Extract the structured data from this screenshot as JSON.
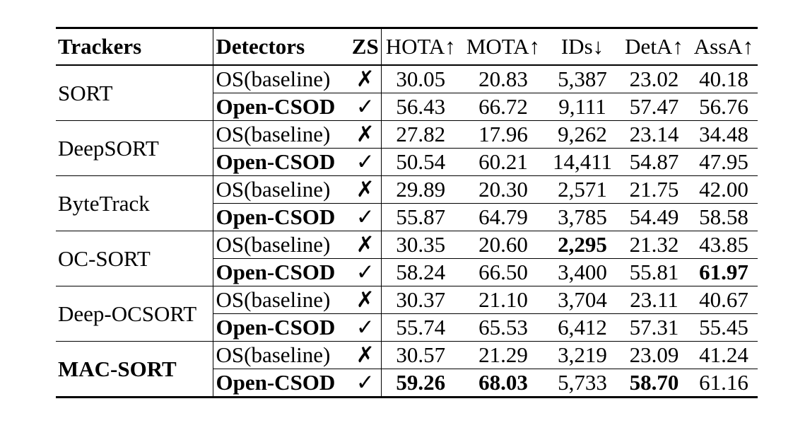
{
  "header": {
    "trackers": "Trackers",
    "detectors": "Detectors",
    "zs": "ZS",
    "hota": "HOTA↑",
    "mota": "MOTA↑",
    "ids": "IDs↓",
    "deta": "DetA↑",
    "assa": "AssA↑"
  },
  "groups": [
    {
      "tracker": "SORT",
      "tracker_bold": false,
      "rows": [
        {
          "detector": "OS(baseline)",
          "zs": "✗",
          "vals": [
            "30.05",
            "20.83",
            "5,387",
            "23.02",
            "40.18"
          ],
          "bold": [
            false,
            false,
            false,
            false,
            false
          ]
        },
        {
          "detector": "Open-CSOD",
          "zs": "✓",
          "vals": [
            "56.43",
            "66.72",
            "9,111",
            "57.47",
            "56.76"
          ],
          "bold": [
            false,
            false,
            false,
            false,
            false
          ]
        }
      ]
    },
    {
      "tracker": "DeepSORT",
      "tracker_bold": false,
      "rows": [
        {
          "detector": "OS(baseline)",
          "zs": "✗",
          "vals": [
            "27.82",
            "17.96",
            "9,262",
            "23.14",
            "34.48"
          ],
          "bold": [
            false,
            false,
            false,
            false,
            false
          ]
        },
        {
          "detector": "Open-CSOD",
          "zs": "✓",
          "vals": [
            "50.54",
            "60.21",
            "14,411",
            "54.87",
            "47.95"
          ],
          "bold": [
            false,
            false,
            false,
            false,
            false
          ]
        }
      ]
    },
    {
      "tracker": "ByteTrack",
      "tracker_bold": false,
      "rows": [
        {
          "detector": "OS(baseline)",
          "zs": "✗",
          "vals": [
            "29.89",
            "20.30",
            "2,571",
            "21.75",
            "42.00"
          ],
          "bold": [
            false,
            false,
            false,
            false,
            false
          ]
        },
        {
          "detector": "Open-CSOD",
          "zs": "✓",
          "vals": [
            "55.87",
            "64.79",
            "3,785",
            "54.49",
            "58.58"
          ],
          "bold": [
            false,
            false,
            false,
            false,
            false
          ]
        }
      ]
    },
    {
      "tracker": "OC-SORT",
      "tracker_bold": false,
      "rows": [
        {
          "detector": "OS(baseline)",
          "zs": "✗",
          "vals": [
            "30.35",
            "20.60",
            "2,295",
            "21.32",
            "43.85"
          ],
          "bold": [
            false,
            false,
            true,
            false,
            false
          ]
        },
        {
          "detector": "Open-CSOD",
          "zs": "✓",
          "vals": [
            "58.24",
            "66.50",
            "3,400",
            "55.81",
            "61.97"
          ],
          "bold": [
            false,
            false,
            false,
            false,
            true
          ]
        }
      ]
    },
    {
      "tracker": "Deep-OCSORT",
      "tracker_bold": false,
      "rows": [
        {
          "detector": "OS(baseline)",
          "zs": "✗",
          "vals": [
            "30.37",
            "21.10",
            "3,704",
            "23.11",
            "40.67"
          ],
          "bold": [
            false,
            false,
            false,
            false,
            false
          ]
        },
        {
          "detector": "Open-CSOD",
          "zs": "✓",
          "vals": [
            "55.74",
            "65.53",
            "6,412",
            "57.31",
            "55.45"
          ],
          "bold": [
            false,
            false,
            false,
            false,
            false
          ]
        }
      ]
    },
    {
      "tracker": "MAC-SORT",
      "tracker_bold": true,
      "rows": [
        {
          "detector": "OS(baseline)",
          "zs": "✗",
          "vals": [
            "30.57",
            "21.29",
            "3,219",
            "23.09",
            "41.24"
          ],
          "bold": [
            false,
            false,
            false,
            false,
            false
          ]
        },
        {
          "detector": "Open-CSOD",
          "zs": "✓",
          "vals": [
            "59.26",
            "68.03",
            "5,733",
            "58.70",
            "61.16"
          ],
          "bold": [
            true,
            true,
            false,
            true,
            false
          ]
        }
      ]
    }
  ]
}
